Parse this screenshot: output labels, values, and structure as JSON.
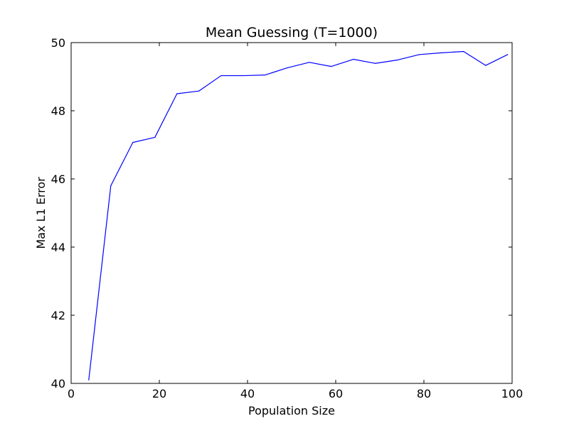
{
  "chart_data": {
    "type": "line",
    "title": "Mean Guessing (T=1000)",
    "xlabel": "Population Size",
    "ylabel": "Max L1 Error",
    "xlim": [
      0,
      100
    ],
    "ylim": [
      40,
      50
    ],
    "xticks": [
      0,
      20,
      40,
      60,
      80,
      100
    ],
    "yticks": [
      40,
      42,
      44,
      46,
      48,
      50
    ],
    "grid": false,
    "legend": "none",
    "series": [
      {
        "color": "#0000ff",
        "x": [
          4,
          9,
          14,
          19,
          24,
          29,
          34,
          39,
          44,
          49,
          54,
          59,
          64,
          69,
          74,
          79,
          84,
          89,
          94,
          99
        ],
        "y": [
          40.1,
          45.8,
          47.07,
          47.22,
          48.5,
          48.58,
          49.03,
          49.03,
          49.05,
          49.26,
          49.42,
          49.3,
          49.51,
          49.39,
          49.49,
          49.65,
          49.7,
          49.74,
          49.33,
          49.65
        ]
      }
    ]
  }
}
